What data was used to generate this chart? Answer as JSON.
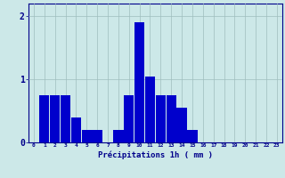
{
  "values": [
    0,
    0.75,
    0.75,
    0.75,
    0.4,
    0.2,
    0.2,
    0.0,
    0.2,
    0.75,
    1.9,
    1.05,
    0.75,
    0.75,
    0.55,
    0.2,
    0.0,
    0.0,
    0.0,
    0.0,
    0.0,
    0.0,
    0.0,
    0.0
  ],
  "bar_color": "#0000cc",
  "background_color": "#cce8e8",
  "grid_color": "#9fbebe",
  "xlabel": "Précipitations 1h ( mm )",
  "xlabel_color": "#00008b",
  "tick_color": "#00008b",
  "yticks": [
    0,
    1,
    2
  ],
  "ylim": [
    0,
    2.2
  ],
  "xlim": [
    -0.5,
    23.5
  ],
  "figsize": [
    3.2,
    2.0
  ],
  "dpi": 100,
  "bar_width": 0.95
}
